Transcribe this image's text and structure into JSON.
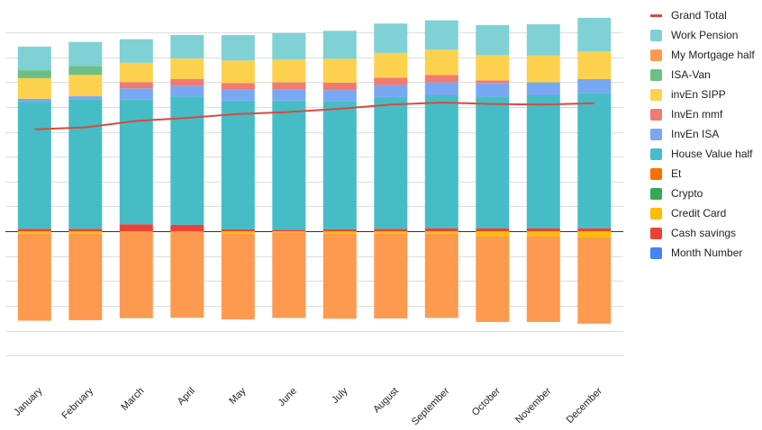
{
  "chart_data": {
    "type": "bar",
    "stacked": true,
    "title": "",
    "xlabel": "",
    "ylabel": "",
    "grid": true,
    "legend_position": "right",
    "categories": [
      "January",
      "February",
      "March",
      "April",
      "May",
      "June",
      "July",
      "August",
      "September",
      "October",
      "November",
      "December"
    ],
    "series": [
      {
        "name": "Grand Total",
        "kind": "line",
        "color": "#d9493c",
        "values": [
          410,
          418,
          444,
          456,
          472,
          480,
          493,
          510,
          518,
          512,
          510,
          515
        ]
      },
      {
        "name": "Work Pension",
        "color": "#7fd1d6",
        "values": [
          95,
          97,
          95,
          95,
          102,
          106,
          113,
          118,
          118,
          121,
          126,
          135
        ]
      },
      {
        "name": "My Mortgage half",
        "color": "#fd9a4f",
        "values": [
          -350,
          -348,
          -348,
          -346,
          -345,
          -344,
          -342,
          -341,
          -339,
          -345,
          -345,
          -347
        ]
      },
      {
        "name": "ISA-Van",
        "color": "#6cbf84",
        "values": [
          32,
          35,
          0,
          0,
          0,
          0,
          0,
          0,
          0,
          0,
          0,
          0
        ]
      },
      {
        "name": "invEn SIPP",
        "color": "#fbd14e",
        "values": [
          83,
          87,
          78,
          82,
          90,
          92,
          96,
          100,
          102,
          102,
          108,
          112
        ]
      },
      {
        "name": "InvEn mmf",
        "color": "#f17a73",
        "values": [
          0,
          0,
          25,
          28,
          28,
          28,
          30,
          30,
          30,
          10,
          0,
          0
        ]
      },
      {
        "name": "InvEn ISA",
        "color": "#78a8f3",
        "values": [
          13,
          13,
          45,
          43,
          43,
          45,
          45,
          48,
          52,
          55,
          52,
          55
        ]
      },
      {
        "name": "House Value half",
        "color": "#46bdc6",
        "values": [
          510,
          520,
          502,
          516,
          518,
          520,
          515,
          530,
          535,
          530,
          535,
          545
        ]
      },
      {
        "name": "Et",
        "color": "#ff6d01",
        "values": [
          0,
          0,
          0,
          0,
          0,
          0,
          0,
          0,
          0,
          0,
          0,
          0
        ]
      },
      {
        "name": "Crypto",
        "color": "#34a853",
        "values": [
          0,
          0,
          0,
          0,
          0,
          0,
          0,
          0,
          0,
          0,
          0,
          0
        ]
      },
      {
        "name": "Credit Card",
        "color": "#fbbc04",
        "values": [
          -10,
          -10,
          -2,
          -2,
          -10,
          -5,
          -10,
          -10,
          -10,
          -20,
          -20,
          -25
        ]
      },
      {
        "name": "Cash savings",
        "color": "#ea4335",
        "values": [
          10,
          10,
          28,
          26,
          8,
          6,
          8,
          10,
          12,
          12,
          12,
          12
        ]
      },
      {
        "name": "Month Number",
        "color": "#4285f4",
        "values": [
          1,
          2,
          3,
          4,
          5,
          6,
          7,
          8,
          9,
          10,
          11,
          12
        ]
      }
    ],
    "ylim": [
      -590,
      880
    ]
  }
}
